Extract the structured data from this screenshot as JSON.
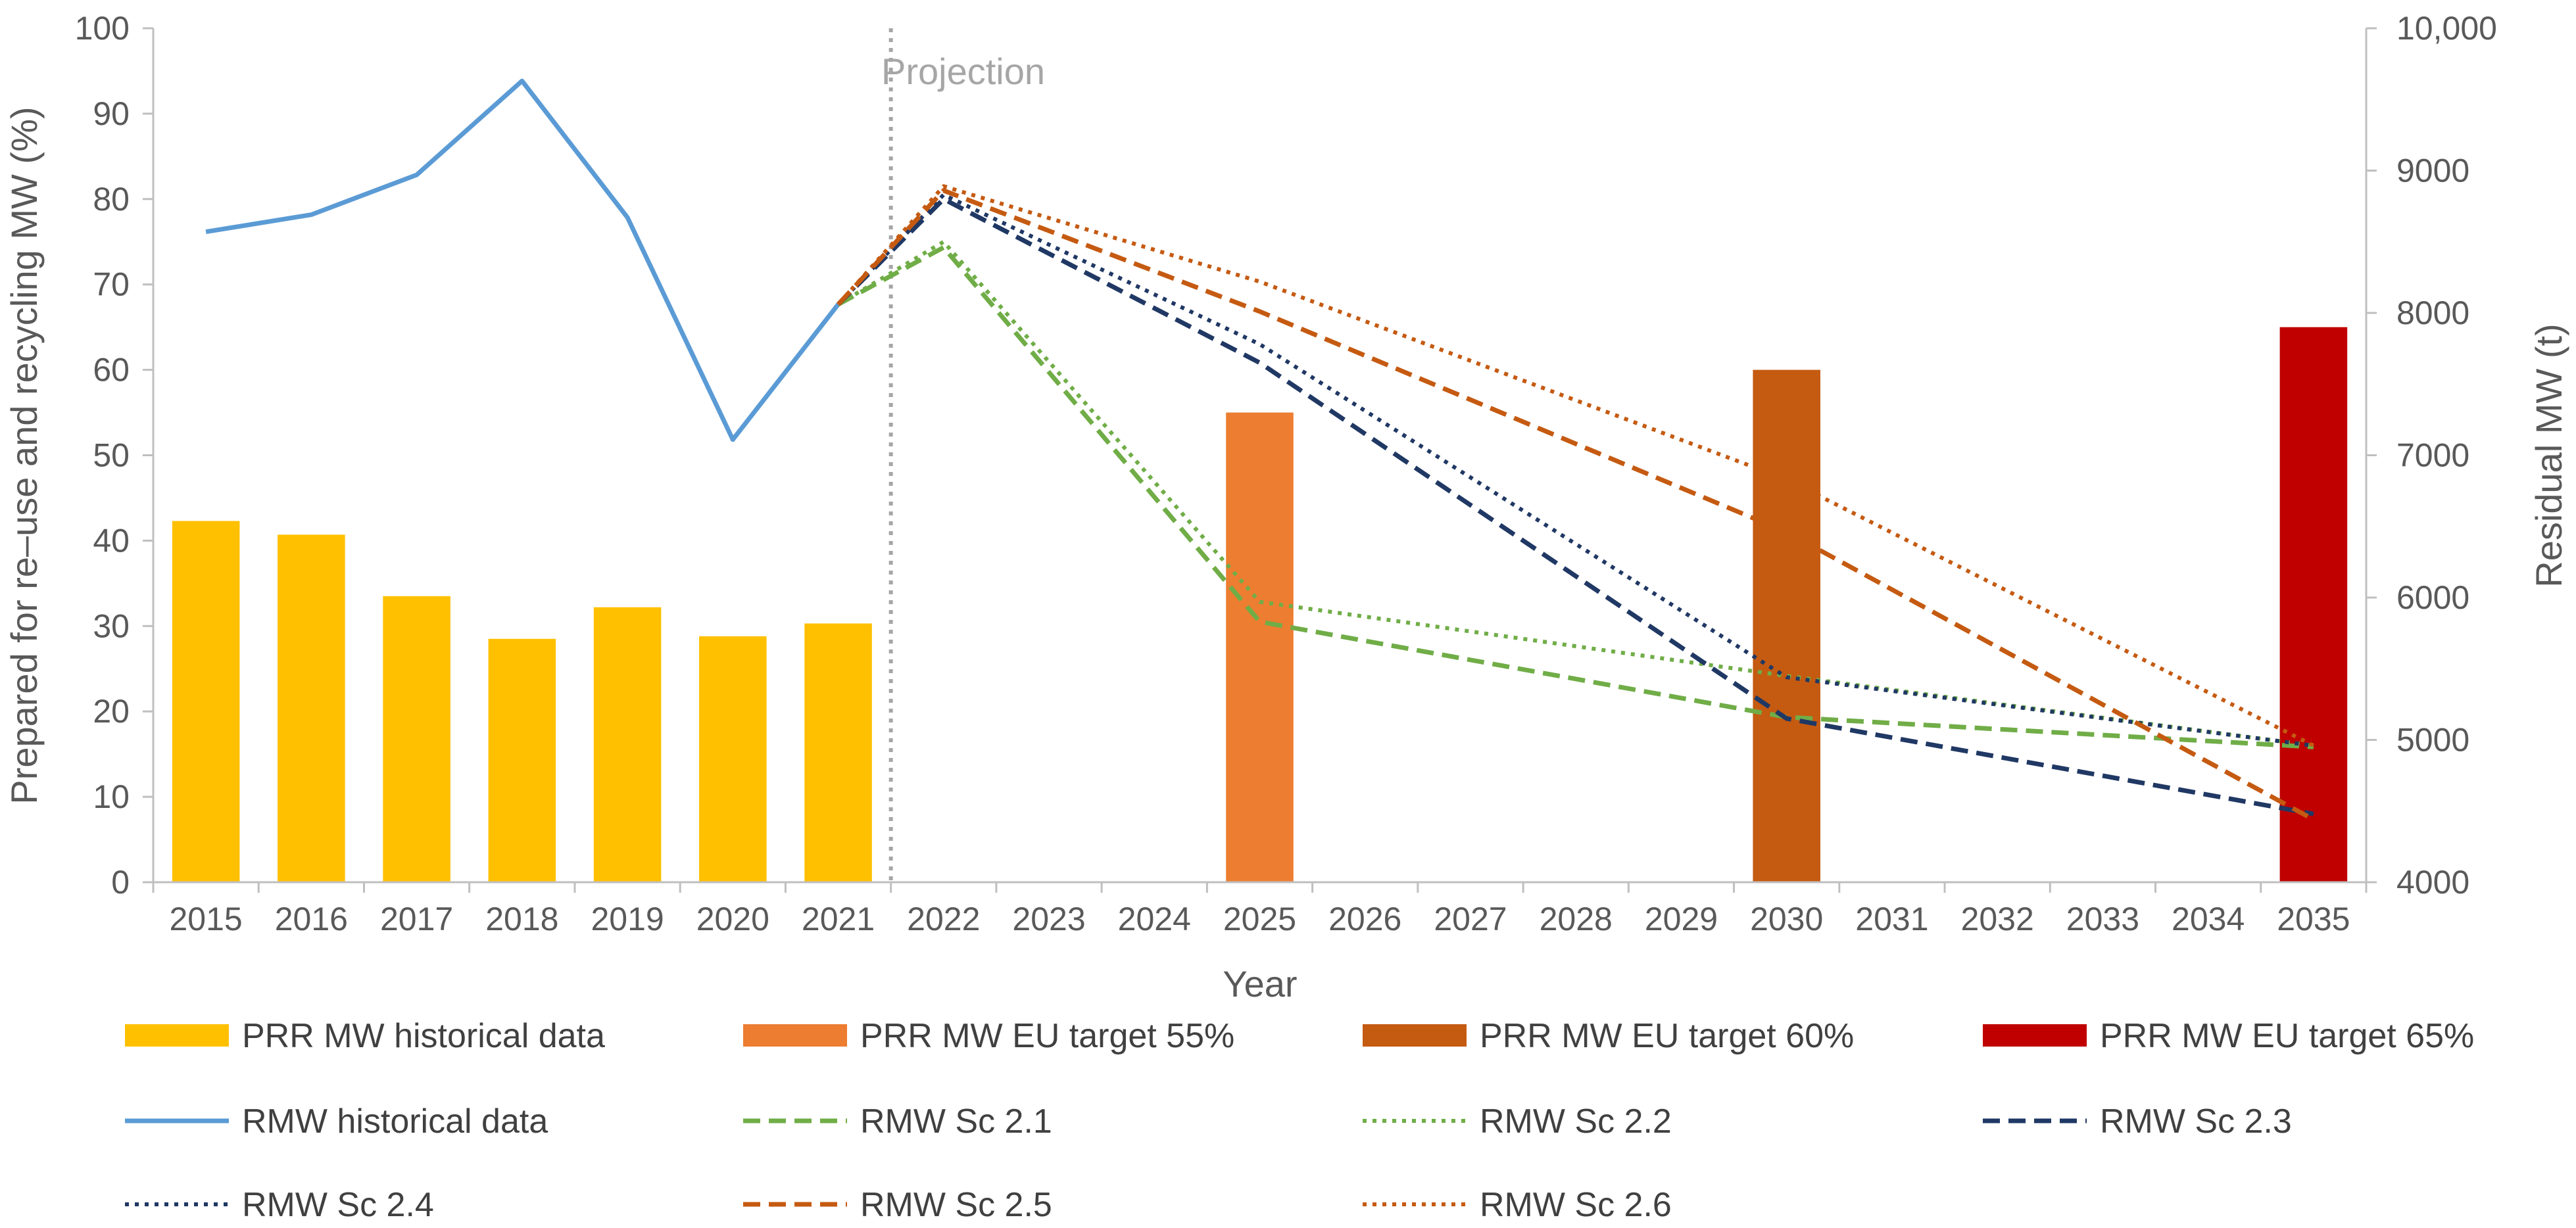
{
  "chart_data": {
    "type": "bar",
    "x": [
      2015,
      2016,
      2017,
      2018,
      2019,
      2020,
      2021,
      2022,
      2023,
      2024,
      2025,
      2026,
      2027,
      2028,
      2029,
      2030,
      2031,
      2032,
      2033,
      2034,
      2035
    ],
    "xlabel": "Year",
    "ylabel": "Prepared for re–use and recycling MW (%)",
    "y2label": "Residual MW (t)",
    "ylim": [
      0,
      100
    ],
    "y2lim": [
      4000,
      10000
    ],
    "yticks": [
      "0",
      "10",
      "20",
      "30",
      "40",
      "50",
      "60",
      "70",
      "80",
      "90",
      "100"
    ],
    "y2ticks": [
      "4000",
      "5000",
      "6000",
      "7000",
      "8000",
      "9000",
      "10,000"
    ],
    "annotation": "Projection",
    "projection_start": 2021,
    "grid": false,
    "legend_position": "bottom",
    "bars": [
      {
        "name": "PRR MW historical data",
        "color": "#FFC000",
        "points": [
          [
            2015,
            42.3
          ],
          [
            2016,
            40.7
          ],
          [
            2017,
            33.5
          ],
          [
            2018,
            28.5
          ],
          [
            2019,
            32.2
          ],
          [
            2020,
            28.8
          ],
          [
            2021,
            30.3
          ]
        ]
      },
      {
        "name": "PRR MW EU target 55%",
        "color": "#ED7D31",
        "points": [
          [
            2025,
            55
          ]
        ]
      },
      {
        "name": "PRR MW EU target 60%",
        "color": "#C55A11",
        "points": [
          [
            2030,
            60
          ]
        ]
      },
      {
        "name": "PRR MW EU target 65%",
        "color": "#C00000",
        "points": [
          [
            2035,
            65
          ]
        ]
      }
    ],
    "series": [
      {
        "name": "RMW historical data",
        "axis": "y2",
        "color": "#5B9BD5",
        "style": "solid",
        "points": [
          [
            2015,
            8570
          ],
          [
            2016,
            8690
          ],
          [
            2017,
            8970
          ],
          [
            2018,
            9630
          ],
          [
            2019,
            8670
          ],
          [
            2020,
            7110
          ],
          [
            2021,
            8060
          ]
        ]
      },
      {
        "name": "RMW Sc 2.1",
        "axis": "y2",
        "color": "#70AD47",
        "style": "dashed",
        "points": [
          [
            2021,
            8060
          ],
          [
            2022,
            8460
          ],
          [
            2025,
            5830
          ],
          [
            2030,
            5160
          ],
          [
            2035,
            4950
          ]
        ]
      },
      {
        "name": "RMW Sc 2.2",
        "axis": "y2",
        "color": "#70AD47",
        "style": "dotted",
        "points": [
          [
            2021,
            8060
          ],
          [
            2022,
            8500
          ],
          [
            2025,
            5970
          ],
          [
            2030,
            5450
          ],
          [
            2035,
            4960
          ]
        ]
      },
      {
        "name": "RMW Sc 2.3",
        "axis": "y2",
        "color": "#203864",
        "style": "dashed",
        "points": [
          [
            2021,
            8060
          ],
          [
            2022,
            8800
          ],
          [
            2025,
            7650
          ],
          [
            2030,
            5150
          ],
          [
            2035,
            4480
          ]
        ]
      },
      {
        "name": "RMW Sc 2.4",
        "axis": "y2",
        "color": "#203864",
        "style": "dotted",
        "points": [
          [
            2021,
            8060
          ],
          [
            2022,
            8830
          ],
          [
            2025,
            7780
          ],
          [
            2030,
            5440
          ],
          [
            2035,
            4960
          ]
        ]
      },
      {
        "name": "RMW Sc 2.5",
        "axis": "y2",
        "color": "#C55A11",
        "style": "dashed",
        "points": [
          [
            2021,
            8060
          ],
          [
            2022,
            8860
          ],
          [
            2025,
            8010
          ],
          [
            2030,
            6460
          ],
          [
            2035,
            4440
          ]
        ]
      },
      {
        "name": "RMW Sc 2.6",
        "axis": "y2",
        "color": "#C55A11",
        "style": "dotted",
        "points": [
          [
            2021,
            8060
          ],
          [
            2022,
            8890
          ],
          [
            2025,
            8220
          ],
          [
            2030,
            6830
          ],
          [
            2035,
            4960
          ]
        ]
      }
    ]
  }
}
